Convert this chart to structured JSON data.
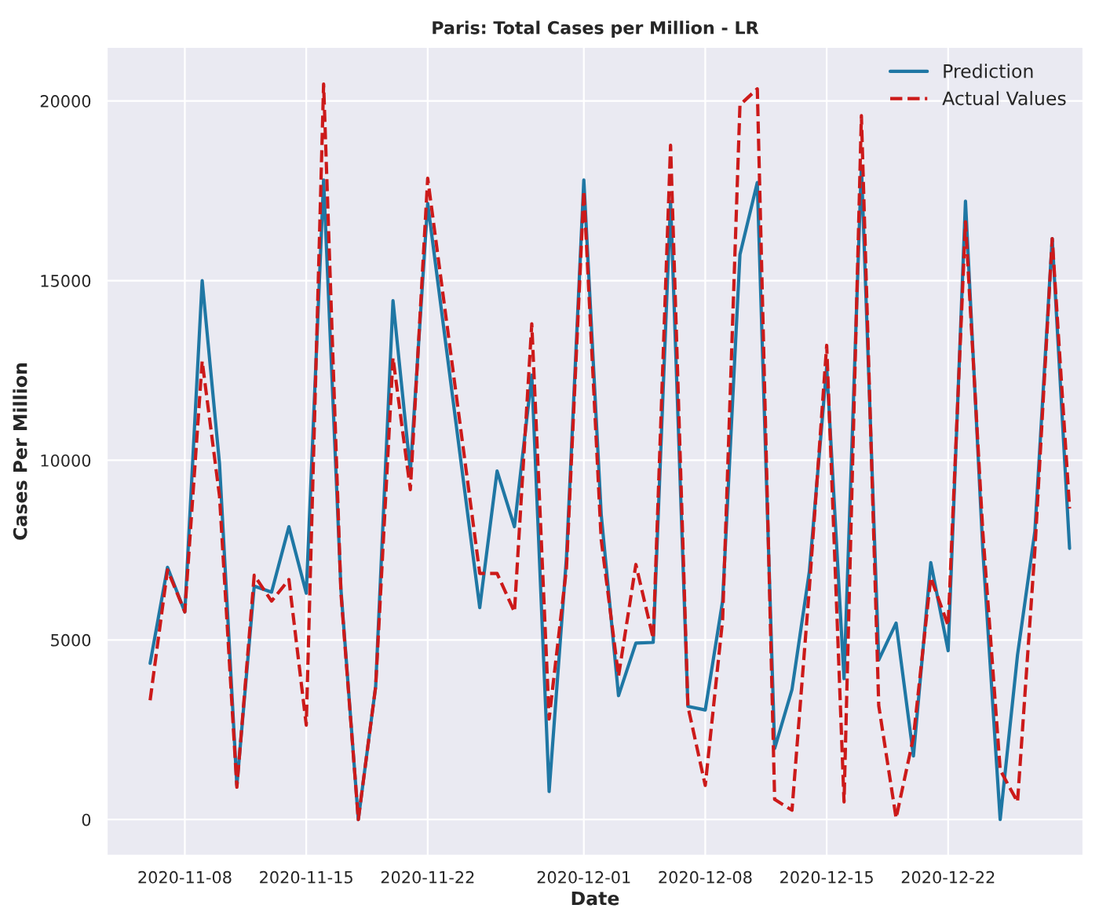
{
  "chart_data": {
    "type": "line",
    "title": "Paris: Total Cases per Million - LR",
    "xlabel": "Date",
    "ylabel": "Cases Per Million",
    "x": [
      "2020-11-06",
      "2020-11-07",
      "2020-11-08",
      "2020-11-09",
      "2020-11-10",
      "2020-11-11",
      "2020-11-12",
      "2020-11-13",
      "2020-11-14",
      "2020-11-15",
      "2020-11-16",
      "2020-11-17",
      "2020-11-18",
      "2020-11-19",
      "2020-11-20",
      "2020-11-21",
      "2020-11-22",
      "2020-11-25",
      "2020-11-26",
      "2020-11-27",
      "2020-11-28",
      "2020-11-29",
      "2020-11-30",
      "2020-12-01",
      "2020-12-02",
      "2020-12-03",
      "2020-12-04",
      "2020-12-05",
      "2020-12-06",
      "2020-12-07",
      "2020-12-08",
      "2020-12-09",
      "2020-12-10",
      "2020-12-11",
      "2020-12-12",
      "2020-12-13",
      "2020-12-14",
      "2020-12-15",
      "2020-12-16",
      "2020-12-17",
      "2020-12-18",
      "2020-12-19",
      "2020-12-20",
      "2020-12-21",
      "2020-12-22",
      "2020-12-23",
      "2020-12-24",
      "2020-12-25",
      "2020-12-26",
      "2020-12-27",
      "2020-12-28",
      "2020-12-29"
    ],
    "series": [
      {
        "name": "Prediction",
        "color": "#1f77a4",
        "line_style": "solid",
        "values": [
          4350,
          7020,
          5780,
          15000,
          9900,
          950,
          6500,
          6330,
          8150,
          6300,
          17800,
          6400,
          0,
          3700,
          14440,
          9700,
          17150,
          5900,
          9700,
          8150,
          12370,
          780,
          7300,
          17800,
          8500,
          3450,
          4910,
          4930,
          17200,
          3150,
          3050,
          6080,
          15730,
          17730,
          1980,
          3620,
          6900,
          12600,
          3920,
          18190,
          4440,
          5470,
          1770,
          7150,
          4700,
          17210,
          7500,
          0,
          4580,
          8020,
          16170,
          7550
        ]
      },
      {
        "name": "Actual Values",
        "color": "#cc1a1a",
        "line_style": "dashed",
        "values": [
          3320,
          6950,
          5780,
          12760,
          9000,
          900,
          6800,
          6080,
          6680,
          2630,
          20470,
          6300,
          0,
          3700,
          12850,
          9180,
          17850,
          6850,
          6850,
          5780,
          13800,
          2800,
          7000,
          17500,
          7800,
          3990,
          7100,
          5040,
          18770,
          3150,
          950,
          5560,
          19890,
          20340,
          560,
          260,
          6440,
          13200,
          490,
          19590,
          3170,
          40,
          2290,
          6740,
          5400,
          16640,
          8000,
          1380,
          490,
          7500,
          16170,
          8660
        ]
      }
    ],
    "xlim": [
      "2020-11-03T12:00",
      "2020-12-29T19:00"
    ],
    "xticks": [
      {
        "value": "2020-11-08",
        "label": "2020-11-08"
      },
      {
        "value": "2020-11-15",
        "label": "2020-11-15"
      },
      {
        "value": "2020-11-22",
        "label": "2020-11-22"
      },
      {
        "value": "2020-12-01",
        "label": "2020-12-01"
      },
      {
        "value": "2020-12-08",
        "label": "2020-12-08"
      },
      {
        "value": "2020-12-15",
        "label": "2020-12-15"
      },
      {
        "value": "2020-12-22",
        "label": "2020-12-22"
      }
    ],
    "ylim": [
      -1000,
      21500
    ],
    "yticks": [
      0,
      5000,
      10000,
      15000,
      20000
    ],
    "grid": true,
    "legend": "top right"
  }
}
